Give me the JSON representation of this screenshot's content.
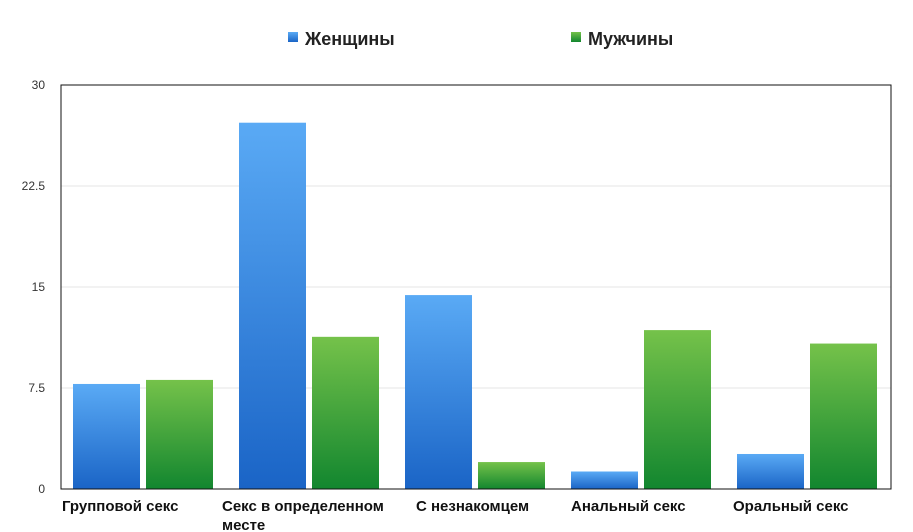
{
  "colors": {
    "women_top": "#5aaaf5",
    "women_bottom": "#1a64c6",
    "men_top": "#75c24a",
    "men_bottom": "#12862f",
    "grid": "#e6e6e6",
    "axis": "#111111"
  },
  "chart_data": {
    "type": "bar",
    "title": "",
    "xlabel": "",
    "ylabel": "",
    "ylim": [
      0,
      30
    ],
    "yticks": [
      "0",
      "7.5",
      "15",
      "22.5",
      "30"
    ],
    "grid": true,
    "legend_position": "top-center",
    "categories": [
      [
        "Групповой секс"
      ],
      [
        "Секс в определенном",
        "месте"
      ],
      [
        "С незнакомцем"
      ],
      [
        "Анальный секс"
      ],
      [
        "Оральный секс"
      ]
    ],
    "series": [
      {
        "name": "Женщины",
        "color": "blue",
        "values": [
          7.8,
          27.2,
          14.4,
          1.3,
          2.6
        ]
      },
      {
        "name": "Мужчины",
        "color": "green",
        "values": [
          8.1,
          11.3,
          2.0,
          11.8,
          10.8
        ]
      }
    ]
  }
}
